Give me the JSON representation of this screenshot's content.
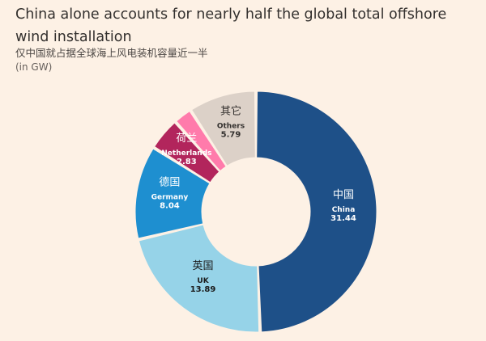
{
  "header": {
    "title": "China alone accounts for nearly half the global total offshore wind installation",
    "subtitle": "仅中国就占据全球海上风电装机容量近一半",
    "unit": "(in GW)"
  },
  "chart_data": {
    "type": "pie",
    "style": "donut",
    "title": "China alone accounts for nearly half the global total offshore wind installation",
    "subtitle": "仅中国就占据全球海上风电装机容量近一半",
    "unit": "(in GW)",
    "slices": [
      {
        "key": "china",
        "name_zh": "中国",
        "name_en": "China",
        "value": 31.44,
        "value_label": "31.44",
        "color": "#1e5088",
        "text_color": "#ffffff"
      },
      {
        "key": "uk",
        "name_zh": "英国",
        "name_en": "UK",
        "value": 13.89,
        "value_label": "13.89",
        "color": "#96d3e8",
        "text_color": "#1a1a1a"
      },
      {
        "key": "germany",
        "name_zh": "德国",
        "name_en": "Germany",
        "value": 8.04,
        "value_label": "8.04",
        "color": "#1e8fd0",
        "text_color": "#ffffff"
      },
      {
        "key": "netherlands",
        "name_zh": "荷兰",
        "name_en": "Netherlands",
        "value": 2.83,
        "value_label": "2.83",
        "color": "#b2255c",
        "text_color": "#ffffff"
      },
      {
        "key": "pink",
        "name_zh": "",
        "name_en": "",
        "value": 1.6,
        "value_label": "",
        "color": "#ff7bab",
        "text_color": "#ffffff"
      },
      {
        "key": "others",
        "name_zh": "其它",
        "name_en": "Others",
        "value": 5.79,
        "value_label": "5.79",
        "color": "#dcd1c8",
        "text_color": "#33302e"
      }
    ]
  }
}
